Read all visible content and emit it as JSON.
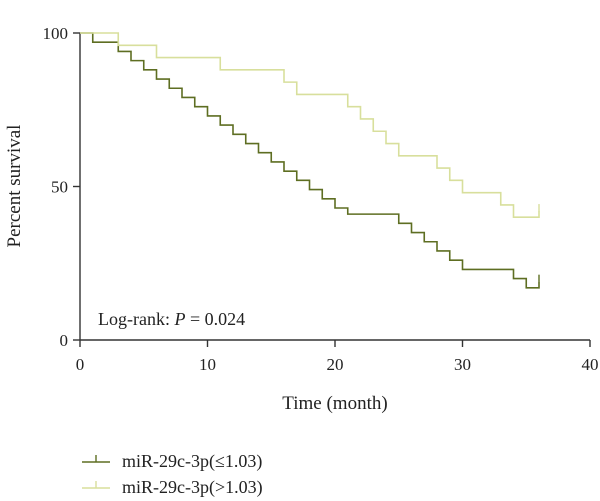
{
  "chart_data": {
    "type": "line",
    "subtype": "kaplan-meier step",
    "xlabel": "Time (month)",
    "ylabel": "Percent survival",
    "xlim": [
      0,
      40
    ],
    "ylim": [
      0,
      100
    ],
    "x_ticks": [
      "0",
      "10",
      "20",
      "30",
      "40"
    ],
    "y_ticks": [
      "0",
      "50",
      "100"
    ],
    "grid": false,
    "legend_position": "bottom-left",
    "annotation": {
      "prefix": "Log-rank: ",
      "italic": "P",
      "suffix": " = 0.024"
    },
    "series": [
      {
        "name": "miR-29c-3p(≤1.03)",
        "color": "#5e6e22",
        "points": [
          [
            0,
            100
          ],
          [
            1,
            97
          ],
          [
            3,
            94
          ],
          [
            4,
            91
          ],
          [
            5,
            88
          ],
          [
            6,
            85
          ],
          [
            7,
            82
          ],
          [
            8,
            79
          ],
          [
            9,
            76
          ],
          [
            10,
            73
          ],
          [
            11,
            70
          ],
          [
            12,
            67
          ],
          [
            13,
            64
          ],
          [
            14,
            61
          ],
          [
            15,
            58
          ],
          [
            16,
            55
          ],
          [
            17,
            52
          ],
          [
            18,
            49
          ],
          [
            19,
            46
          ],
          [
            20,
            43
          ],
          [
            21,
            41
          ],
          [
            25,
            38
          ],
          [
            26,
            35
          ],
          [
            27,
            32
          ],
          [
            28,
            29
          ],
          [
            29,
            26
          ],
          [
            30,
            23
          ],
          [
            34,
            20
          ],
          [
            35,
            17
          ],
          [
            36,
            19
          ]
        ],
        "censor_x": [
          36
        ]
      },
      {
        "name": "miR-29c-3p(>1.03)",
        "color": "#d8df9c",
        "points": [
          [
            0,
            100
          ],
          [
            3,
            96
          ],
          [
            6,
            92
          ],
          [
            11,
            88
          ],
          [
            16,
            84
          ],
          [
            17,
            80
          ],
          [
            21,
            76
          ],
          [
            22,
            72
          ],
          [
            23,
            68
          ],
          [
            24,
            64
          ],
          [
            25,
            60
          ],
          [
            28,
            56
          ],
          [
            29,
            52
          ],
          [
            30,
            48
          ],
          [
            33,
            44
          ],
          [
            34,
            40
          ],
          [
            36,
            42
          ]
        ],
        "censor_x": [
          36
        ]
      }
    ]
  }
}
